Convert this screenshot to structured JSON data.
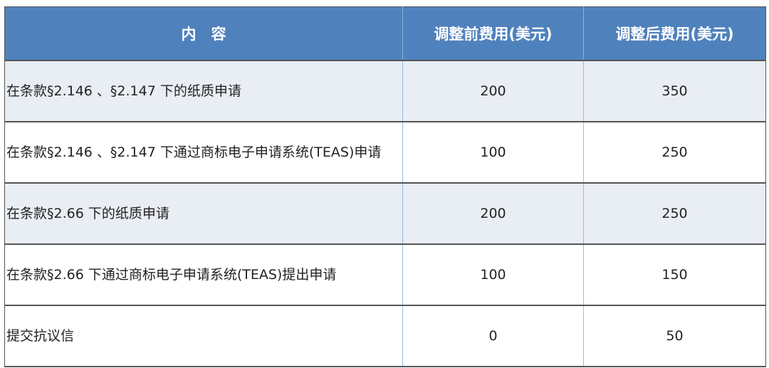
{
  "table": {
    "headers": [
      "内　容",
      "调整前费用(美元)",
      "调整后费用(美元)"
    ],
    "rows": [
      {
        "content": "在条款§2.146 、§2.147 下的纸质申请",
        "before": "200",
        "after": "350"
      },
      {
        "content": "在条款§2.146 、§2.147 下通过商标电子申请系统(TEAS)申请",
        "before": "100",
        "after": "250"
      },
      {
        "content": "在条款§2.66 下的纸质申请",
        "before": "200",
        "after": "250"
      },
      {
        "content": "在条款§2.66 下通过商标电子申请系统(TEAS)提出申请",
        "before": "100",
        "after": "150"
      },
      {
        "content": "提交抗议信",
        "before": "0",
        "after": "50"
      }
    ]
  },
  "colors": {
    "header_bg": "#4f81bd",
    "alt_row_bg": "#e9edf4"
  }
}
